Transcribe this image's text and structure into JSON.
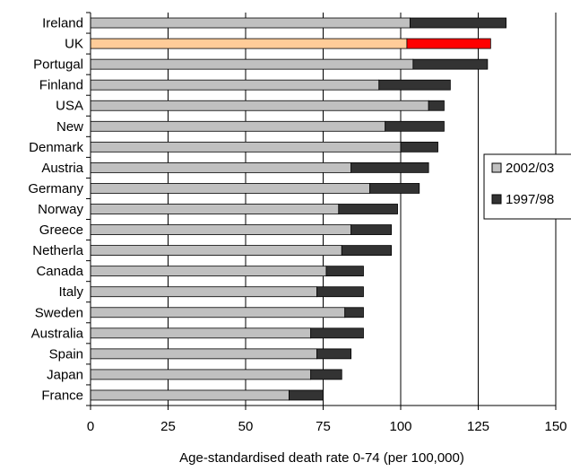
{
  "chart_data": {
    "type": "bar",
    "orientation": "horizontal",
    "stacked": true,
    "title": "",
    "xlabel": "Age-standardised death rate 0-74 (per 100,000)",
    "ylabel": "",
    "xlim": [
      0,
      150
    ],
    "xticks": [
      0,
      25,
      50,
      75,
      100,
      125,
      150
    ],
    "grid": "vertical-major",
    "legend_position": "right",
    "categories": [
      "Ireland",
      "UK",
      "Portugal",
      "Finland",
      "USA",
      "New",
      "Denmark",
      "Austria",
      "Germany",
      "Norway",
      "Greece",
      "Netherla",
      "Canada",
      "Italy",
      "Sweden",
      "Australia",
      "Spain",
      "Japan",
      "France"
    ],
    "series": [
      {
        "name": "2002/03",
        "color": "#c0c0c0",
        "values": [
          103,
          102,
          104,
          93,
          109,
          95,
          100,
          84,
          90,
          80,
          84,
          81,
          76,
          73,
          82,
          71,
          73,
          71,
          64
        ]
      },
      {
        "name": "1997/98",
        "color": "#333333",
        "values": [
          31,
          27,
          24,
          23,
          5,
          19,
          12,
          25,
          16,
          19,
          13,
          16,
          12,
          15,
          6,
          17,
          11,
          10,
          11
        ]
      }
    ],
    "highlight": {
      "category": "UK",
      "colors": [
        "#ffcc99",
        "#ff0000"
      ]
    }
  }
}
